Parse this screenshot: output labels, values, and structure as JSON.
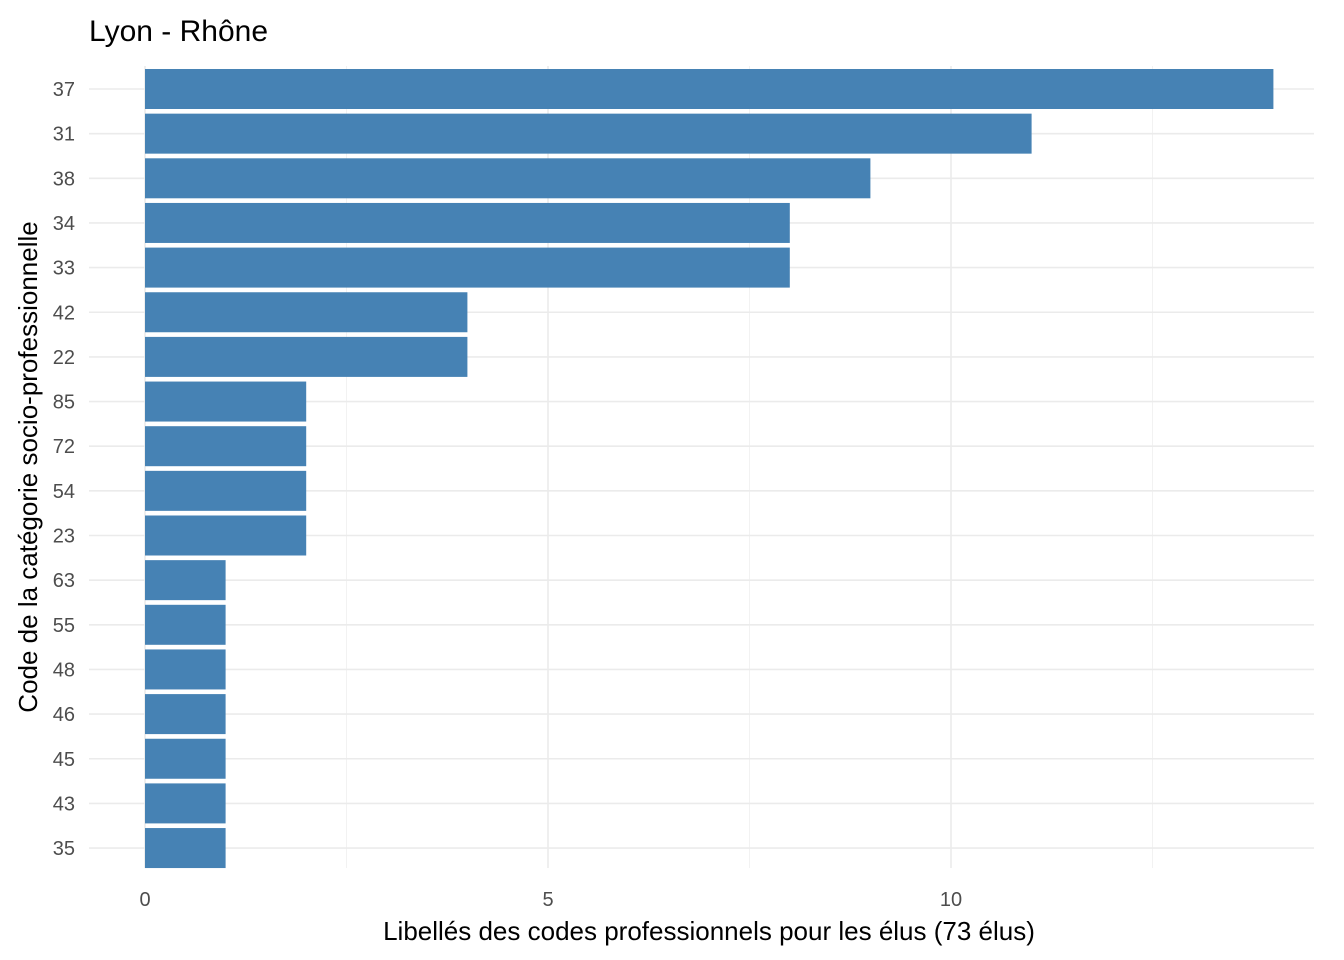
{
  "chart_data": {
    "type": "bar",
    "orientation": "horizontal",
    "title": "Lyon - Rhône",
    "xlabel": "Libellés des codes professionnels pour les élus (73 élus)",
    "ylabel": "Code de la catégorie socio-professionnelle",
    "categories": [
      "37",
      "31",
      "38",
      "34",
      "33",
      "42",
      "22",
      "85",
      "72",
      "54",
      "23",
      "63",
      "55",
      "48",
      "46",
      "45",
      "43",
      "35"
    ],
    "values": [
      14,
      11,
      9,
      8,
      8,
      4,
      4,
      2,
      2,
      2,
      2,
      1,
      1,
      1,
      1,
      1,
      1,
      1
    ],
    "xlim": [
      0,
      14
    ],
    "xticks": [
      0,
      5,
      10
    ],
    "bar_color": "#4682b4",
    "grid": true,
    "legend": "none"
  }
}
